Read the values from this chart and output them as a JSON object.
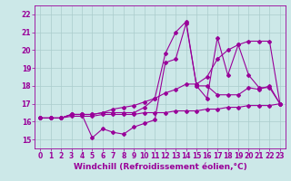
{
  "title": "",
  "xlabel": "Windchill (Refroidissement éolien,°C)",
  "ylabel": "",
  "xlim": [
    -0.5,
    23.5
  ],
  "ylim": [
    14.5,
    22.5
  ],
  "xticks": [
    0,
    1,
    2,
    3,
    4,
    5,
    6,
    7,
    8,
    9,
    10,
    11,
    12,
    13,
    14,
    15,
    16,
    17,
    18,
    19,
    20,
    21,
    22,
    23
  ],
  "yticks": [
    15,
    16,
    17,
    18,
    19,
    20,
    21,
    22
  ],
  "bg_color": "#cce8e8",
  "line_color": "#990099",
  "grid_color": "#aacccc",
  "line1_x": [
    0,
    1,
    2,
    3,
    4,
    5,
    6,
    7,
    8,
    9,
    10,
    11,
    12,
    13,
    14,
    15,
    16,
    17,
    18,
    19,
    20,
    21,
    22,
    23
  ],
  "line1_y": [
    16.2,
    16.2,
    16.2,
    16.4,
    16.4,
    15.1,
    15.6,
    15.4,
    15.3,
    15.7,
    15.9,
    16.1,
    19.3,
    19.5,
    21.5,
    18.0,
    18.0,
    17.5,
    17.5,
    17.5,
    17.9,
    17.8,
    18.0,
    17.0
  ],
  "line2_x": [
    0,
    1,
    2,
    3,
    4,
    5,
    6,
    7,
    8,
    9,
    10,
    11,
    12,
    13,
    14,
    15,
    16,
    17,
    18,
    19,
    20,
    21,
    22,
    23
  ],
  "line2_y": [
    16.2,
    16.2,
    16.2,
    16.4,
    16.4,
    16.4,
    16.5,
    16.5,
    16.5,
    16.5,
    16.8,
    17.3,
    19.8,
    21.0,
    21.6,
    18.0,
    17.3,
    20.7,
    18.6,
    20.3,
    18.6,
    17.9,
    17.9,
    17.0
  ],
  "line3_x": [
    0,
    1,
    2,
    3,
    4,
    5,
    6,
    7,
    8,
    9,
    10,
    11,
    12,
    13,
    14,
    15,
    16,
    17,
    18,
    19,
    20,
    21,
    22,
    23
  ],
  "line3_y": [
    16.2,
    16.2,
    16.2,
    16.4,
    16.4,
    16.4,
    16.5,
    16.7,
    16.8,
    16.9,
    17.1,
    17.3,
    17.6,
    17.8,
    18.1,
    18.1,
    18.5,
    19.5,
    20.0,
    20.3,
    20.5,
    20.5,
    20.5,
    17.0
  ],
  "line4_x": [
    0,
    1,
    2,
    3,
    4,
    5,
    6,
    7,
    8,
    9,
    10,
    11,
    12,
    13,
    14,
    15,
    16,
    17,
    18,
    19,
    20,
    21,
    22,
    23
  ],
  "line4_y": [
    16.2,
    16.2,
    16.2,
    16.3,
    16.3,
    16.3,
    16.4,
    16.4,
    16.4,
    16.4,
    16.5,
    16.5,
    16.5,
    16.6,
    16.6,
    16.6,
    16.7,
    16.7,
    16.8,
    16.8,
    16.9,
    16.9,
    16.9,
    17.0
  ],
  "marker": "D",
  "markersize": 2.0,
  "linewidth": 0.8,
  "xlabel_fontsize": 6.5,
  "tick_fontsize": 5.5
}
